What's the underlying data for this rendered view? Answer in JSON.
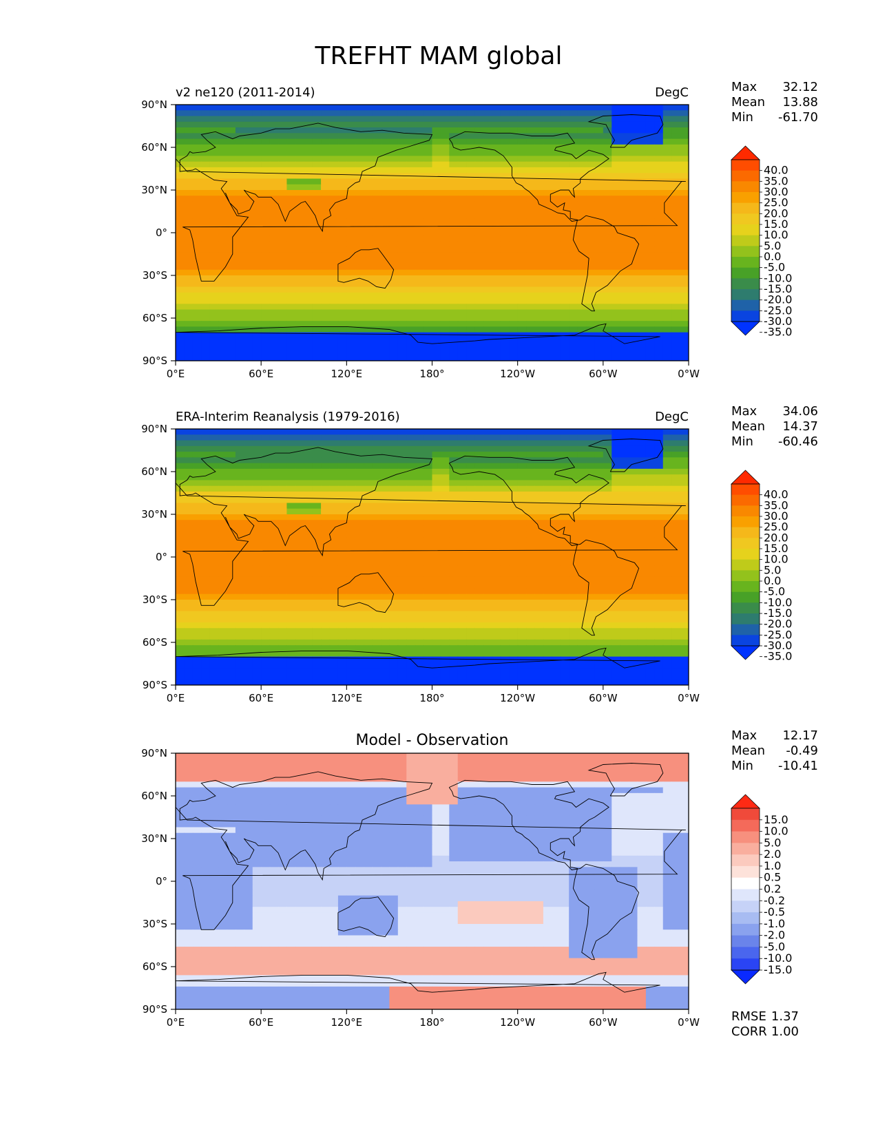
{
  "figure": {
    "title": "TREFHT MAM global"
  },
  "chart_data": [
    {
      "type": "heatmap",
      "panel_title_left": "v2 ne120 (2011-2014)",
      "panel_title_center": "",
      "panel_title_right": "DegC",
      "xlim": [
        0,
        360
      ],
      "ylim": [
        -90,
        90
      ],
      "x_ticks": [
        "0°E",
        "60°E",
        "120°E",
        "180°",
        "120°W",
        "60°W",
        "0°W"
      ],
      "y_ticks": [
        "90°N",
        "60°N",
        "30°N",
        "0°",
        "30°S",
        "60°S",
        "90°S"
      ],
      "stats": [
        {
          "label": "Max",
          "value": "32.12"
        },
        {
          "label": "Mean",
          "value": "13.88"
        },
        {
          "label": "Min",
          "value": "-61.70"
        }
      ],
      "colorbar": {
        "levels": [
          "40.0",
          "35.0",
          "30.0",
          "25.0",
          "20.0",
          "15.0",
          "10.0",
          "5.0",
          "0.0",
          "-5.0",
          "-10.0",
          "-15.0",
          "-20.0",
          "-25.0",
          "-30.0",
          "-35.0"
        ],
        "colors": [
          "#ff2a00",
          "#ff4d00",
          "#fb6a00",
          "#f98800",
          "#f9a000",
          "#f5b81a",
          "#f0c820",
          "#e6d21c",
          "#bfcb1a",
          "#93c21c",
          "#68b41e",
          "#48a127",
          "#3a8c4a",
          "#2e7c6e",
          "#1f62a8",
          "#0a44e0",
          "#0033ff"
        ]
      },
      "field": "model"
    },
    {
      "type": "heatmap",
      "panel_title_left": "ERA-Interim Reanalysis (1979-2016)",
      "panel_title_center": "",
      "panel_title_right": "DegC",
      "xlim": [
        0,
        360
      ],
      "ylim": [
        -90,
        90
      ],
      "x_ticks": [
        "0°E",
        "60°E",
        "120°E",
        "180°",
        "120°W",
        "60°W",
        "0°W"
      ],
      "y_ticks": [
        "90°N",
        "60°N",
        "30°N",
        "0°",
        "30°S",
        "60°S",
        "90°S"
      ],
      "stats": [
        {
          "label": "Max",
          "value": "34.06"
        },
        {
          "label": "Mean",
          "value": "14.37"
        },
        {
          "label": "Min",
          "value": "-60.46"
        }
      ],
      "colorbar": {
        "levels": [
          "40.0",
          "35.0",
          "30.0",
          "25.0",
          "20.0",
          "15.0",
          "10.0",
          "5.0",
          "0.0",
          "-5.0",
          "-10.0",
          "-15.0",
          "-20.0",
          "-25.0",
          "-30.0",
          "-35.0"
        ],
        "colors": [
          "#ff2a00",
          "#ff4d00",
          "#fb6a00",
          "#f98800",
          "#f9a000",
          "#f5b81a",
          "#f0c820",
          "#e6d21c",
          "#bfcb1a",
          "#93c21c",
          "#68b41e",
          "#48a127",
          "#3a8c4a",
          "#2e7c6e",
          "#1f62a8",
          "#0a44e0",
          "#0033ff"
        ]
      },
      "field": "obs"
    },
    {
      "type": "heatmap",
      "panel_title_left": "",
      "panel_title_center": "Model - Observation",
      "panel_title_right": "",
      "xlim": [
        0,
        360
      ],
      "ylim": [
        -90,
        90
      ],
      "x_ticks": [
        "0°E",
        "60°E",
        "120°E",
        "180°",
        "120°W",
        "60°W",
        "0°W"
      ],
      "y_ticks": [
        "90°N",
        "60°N",
        "30°N",
        "0°",
        "30°S",
        "60°S",
        "90°S"
      ],
      "stats": [
        {
          "label": "Max",
          "value": "12.17"
        },
        {
          "label": "Mean",
          "value": "-0.49"
        },
        {
          "label": "Min",
          "value": "-10.41"
        }
      ],
      "bottom_stats": [
        {
          "label": "RMSE",
          "value": "1.37"
        },
        {
          "label": "CORR",
          "value": "1.00"
        }
      ],
      "colorbar": {
        "levels": [
          "15.0",
          "10.0",
          "5.0",
          "2.0",
          "1.0",
          "0.5",
          "0.2",
          "-0.2",
          "-0.5",
          "-1.0",
          "-2.0",
          "-5.0",
          "-10.0",
          "-15.0"
        ],
        "colors": [
          "#ff2a14",
          "#f04a3a",
          "#f46a5a",
          "#f7907e",
          "#f9ae9e",
          "#fbcabe",
          "#fde2da",
          "#ffffff",
          "#dfe6fb",
          "#c6d2f7",
          "#a8bcf2",
          "#8aa2ee",
          "#6a84ea",
          "#4a66ee",
          "#2a44f4",
          "#0a2aff"
        ]
      },
      "field": "diff"
    }
  ]
}
